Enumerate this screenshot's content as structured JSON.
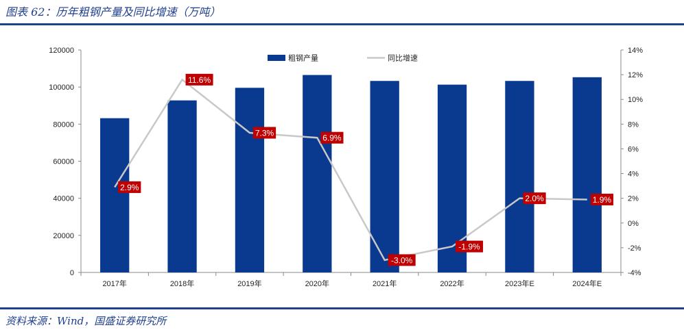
{
  "header": {
    "title": "图表 62：历年粗钢产量及同比增速（万吨）"
  },
  "footer": {
    "source": "资料来源：Wind，国盛证券研究所"
  },
  "colors": {
    "bar": "#0a3a8f",
    "line": "#c8c8c8",
    "label_bg": "#c00000",
    "rule": "#1f3f8f"
  },
  "chart_data": {
    "type": "bar+line",
    "categories": [
      "2017年",
      "2018年",
      "2019年",
      "2020年",
      "2021年",
      "2022年",
      "2023年E",
      "2024年E"
    ],
    "series": [
      {
        "name": "粗钢产量",
        "type": "bar",
        "axis": "left",
        "values": [
          83200,
          92800,
          99600,
          106500,
          103300,
          101300,
          103300,
          105300
        ]
      },
      {
        "name": "同比增速",
        "type": "line",
        "axis": "right",
        "values": [
          2.9,
          11.6,
          7.3,
          6.9,
          -3.0,
          -1.9,
          2.0,
          1.9
        ],
        "labels": [
          "2.9%",
          "11.6%",
          "7.3%",
          "6.9%",
          "-3.0%",
          "-1.9%",
          "2.0%",
          "1.9%"
        ]
      }
    ],
    "y_left": {
      "min": 0,
      "max": 120000,
      "step": 20000,
      "ticks": [
        "0",
        "20000",
        "40000",
        "60000",
        "80000",
        "100000",
        "120000"
      ]
    },
    "y_right": {
      "min": -4,
      "max": 14,
      "step": 2,
      "ticks": [
        "-4%",
        "-2%",
        "0%",
        "2%",
        "4%",
        "6%",
        "8%",
        "10%",
        "12%",
        "14%"
      ]
    },
    "legend": {
      "position": "top-center",
      "items": [
        "粗钢产量",
        "同比增速"
      ]
    },
    "grid": false
  }
}
